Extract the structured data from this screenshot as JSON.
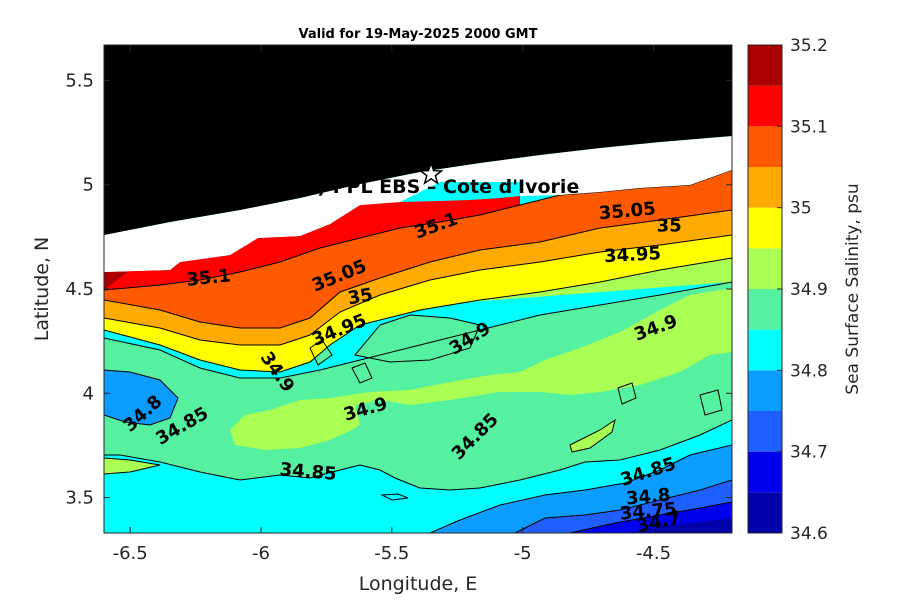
{
  "chart_data": {
    "type": "heatmap",
    "title": "Valid for 19-May-2025 2000 GMT",
    "xlabel": "Longitude, E",
    "ylabel": "Latitude, N",
    "xlim": [
      -6.6,
      -4.2
    ],
    "ylim": [
      3.33,
      5.67
    ],
    "x_ticks": [
      -6.5,
      -6,
      -5.5,
      -5,
      -4.5
    ],
    "x_tick_labels": [
      "-6.5",
      "-6",
      "-5.5",
      "-5",
      "-4.5"
    ],
    "y_ticks": [
      3.5,
      4,
      4.5,
      5,
      5.5
    ],
    "y_tick_labels": [
      "3.5",
      "4",
      "4.5",
      "5",
      "5.5"
    ],
    "annotation": "(ONHYM) PPL EBS  – Cote d'Ivorie",
    "marker": {
      "symbol": "star",
      "lon": -5.35,
      "lat": 5.05
    },
    "colorbar": {
      "label": "Sea Surface Salinity, psu",
      "range": [
        34.6,
        35.2
      ],
      "ticks": [
        34.6,
        34.7,
        34.8,
        34.9,
        35,
        35.1,
        35.2
      ],
      "tick_labels": [
        "34.6",
        "34.7",
        "34.8",
        "34.9",
        "35",
        "35.1",
        "35.2"
      ],
      "levels": [
        34.6,
        34.65,
        34.7,
        34.75,
        34.8,
        34.85,
        34.9,
        34.95,
        35,
        35.05,
        35.1,
        35.15,
        35.2
      ],
      "colors": [
        "#0000aa",
        "#0000ee",
        "#1f5fff",
        "#0a9cff",
        "#00ffff",
        "#55f0a0",
        "#aaff55",
        "#ffff00",
        "#ffaa00",
        "#ff5a00",
        "#ff0000",
        "#aa0000"
      ]
    },
    "contour_labels": [
      {
        "text": "35.1",
        "lon": -6.2,
        "lat": 4.55,
        "angle": -6
      },
      {
        "text": "35.1",
        "lon": -5.33,
        "lat": 4.8,
        "angle": -20
      },
      {
        "text": "35.05",
        "lon": -5.7,
        "lat": 4.56,
        "angle": -22
      },
      {
        "text": "35",
        "lon": -5.62,
        "lat": 4.46,
        "angle": -10
      },
      {
        "text": "34.95",
        "lon": -5.7,
        "lat": 4.3,
        "angle": -22
      },
      {
        "text": "35.05",
        "lon": -4.6,
        "lat": 4.87,
        "angle": -5
      },
      {
        "text": "35",
        "lon": -4.44,
        "lat": 4.8,
        "angle": 0
      },
      {
        "text": "34.95",
        "lon": -4.58,
        "lat": 4.66,
        "angle": -3
      },
      {
        "text": "34.9",
        "lon": -5.2,
        "lat": 4.26,
        "angle": -32
      },
      {
        "text": "34.9",
        "lon": -4.49,
        "lat": 4.31,
        "angle": -20
      },
      {
        "text": "34.9",
        "lon": -5.94,
        "lat": 4.1,
        "angle": 55
      },
      {
        "text": "34.9",
        "lon": -5.6,
        "lat": 3.92,
        "angle": -16
      },
      {
        "text": "34.8",
        "lon": -6.45,
        "lat": 3.9,
        "angle": -42
      },
      {
        "text": "34.85",
        "lon": -6.3,
        "lat": 3.84,
        "angle": -30
      },
      {
        "text": "34.85",
        "lon": -5.18,
        "lat": 3.79,
        "angle": -45
      },
      {
        "text": "34.85",
        "lon": -5.82,
        "lat": 3.62,
        "angle": 5
      },
      {
        "text": "34.85",
        "lon": -4.52,
        "lat": 3.62,
        "angle": -18
      },
      {
        "text": "34.8",
        "lon": -4.52,
        "lat": 3.5,
        "angle": -5
      },
      {
        "text": "34.75",
        "lon": -4.52,
        "lat": 3.43,
        "angle": -5
      },
      {
        "text": "34.7",
        "lon": -4.48,
        "lat": 3.38,
        "angle": -12
      }
    ]
  }
}
